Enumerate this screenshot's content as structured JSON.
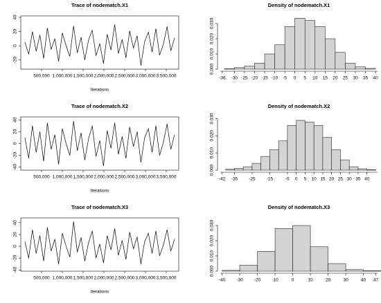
{
  "chart_data": [
    {
      "type": "line",
      "title": "Trace of nodematch.X1",
      "x_label": "Iterations",
      "x": [
        100000,
        190000,
        280000,
        370000,
        460000,
        550000,
        640000,
        730000,
        820000,
        910000,
        1000000,
        1090000,
        1180000,
        1270000,
        1360000,
        1450000,
        1540000,
        1630000,
        1720000,
        1810000,
        1900000,
        1990000,
        2080000,
        2170000,
        2260000,
        2350000,
        2440000,
        2530000,
        2620000,
        2710000,
        2800000,
        2890000,
        2980000,
        3070000,
        3160000,
        3250000,
        3340000,
        3430000,
        3520000,
        3610000,
        3700000
      ],
      "values": [
        5,
        -12,
        20,
        -8,
        15,
        -18,
        25,
        -5,
        10,
        -22,
        18,
        0,
        -15,
        28,
        -10,
        12,
        -20,
        8,
        22,
        -14,
        3,
        -25,
        16,
        -6,
        30,
        -11,
        9,
        -17,
        21,
        -3,
        14,
        -28,
        6,
        19,
        -9,
        24,
        -13,
        2,
        27,
        -7,
        11
      ],
      "color": "#000000",
      "xlim": [
        0,
        3800000
      ],
      "xticks": [
        {
          "value": 500000,
          "label": "500,000"
        },
        {
          "value": 1000000,
          "label": "1,000,000"
        },
        {
          "value": 1500000,
          "label": "1,500,000"
        },
        {
          "value": 2000000,
          "label": "2,000,000"
        },
        {
          "value": 2500000,
          "label": "2,500,000"
        },
        {
          "value": 3000000,
          "label": "3,000,000"
        },
        {
          "value": 3500000,
          "label": "3,500,000"
        }
      ],
      "ylim": [
        -33,
        42
      ],
      "yticks": [
        -20,
        0,
        20,
        40
      ]
    },
    {
      "type": "histogram",
      "title": "Density of nodematch.X1",
      "bins": [
        -35,
        -30,
        -25,
        -20,
        -15,
        -10,
        -5,
        0,
        5,
        10,
        15,
        20,
        25,
        30,
        35,
        40
      ],
      "values": [
        0.0003,
        0.001,
        0.002,
        0.004,
        0.01,
        0.016,
        0.028,
        0.0335,
        0.032,
        0.028,
        0.02,
        0.011,
        0.004,
        0.0015,
        0.0005
      ],
      "color": "#d3d3d3",
      "xlim": [
        -37,
        41
      ],
      "xticks": [
        -36,
        -30,
        -25,
        -20,
        -15,
        -10,
        -5,
        0,
        5,
        10,
        15,
        20,
        25,
        30,
        35,
        40
      ],
      "ylim": [
        0,
        0.035
      ],
      "yticks": [
        {
          "value": 0,
          "label": "0.000"
        },
        {
          "value": 0.01,
          "label": "0.010"
        },
        {
          "value": 0.02,
          "label": "0.020"
        },
        {
          "value": 0.03,
          "label": "0.030"
        }
      ]
    },
    {
      "type": "line",
      "title": "Trace of nodematch.X2",
      "x_label": "Iterations",
      "x": [
        100000,
        190000,
        280000,
        370000,
        460000,
        550000,
        640000,
        730000,
        820000,
        910000,
        1000000,
        1090000,
        1180000,
        1270000,
        1360000,
        1450000,
        1540000,
        1630000,
        1720000,
        1810000,
        1900000,
        1990000,
        2080000,
        2170000,
        2260000,
        2350000,
        2440000,
        2530000,
        2620000,
        2710000,
        2800000,
        2890000,
        2980000,
        3070000,
        3160000,
        3250000,
        3340000,
        3430000,
        3520000,
        3610000,
        3700000
      ],
      "values": [
        10,
        -25,
        30,
        -15,
        20,
        -30,
        35,
        -10,
        15,
        -35,
        25,
        0,
        -20,
        38,
        -12,
        18,
        -28,
        8,
        30,
        -22,
        5,
        -38,
        22,
        -8,
        35,
        -18,
        12,
        -25,
        28,
        -5,
        20,
        -32,
        10,
        25,
        -15,
        30,
        -20,
        2,
        33,
        -10,
        15
      ],
      "color": "#000000",
      "xlim": [
        0,
        3800000
      ],
      "xticks": [
        {
          "value": 500000,
          "label": "500,000"
        },
        {
          "value": 1000000,
          "label": "1,000,000"
        },
        {
          "value": 1500000,
          "label": "1,500,000"
        },
        {
          "value": 2000000,
          "label": "2,000,000"
        },
        {
          "value": 2500000,
          "label": "2,500,000"
        },
        {
          "value": 3000000,
          "label": "3,000,000"
        },
        {
          "value": 3500000,
          "label": "3,500,000"
        }
      ],
      "ylim": [
        -45,
        45
      ],
      "yticks": [
        -40,
        -20,
        0,
        20,
        40
      ]
    },
    {
      "type": "histogram",
      "title": "Density of nodematch.X2",
      "bins": [
        -40,
        -35,
        -30,
        -25,
        -20,
        -15,
        -10,
        -5,
        0,
        5,
        10,
        15,
        20,
        25,
        30,
        35,
        40,
        45
      ],
      "values": [
        0.0005,
        0.001,
        0.002,
        0.004,
        0.008,
        0.012,
        0.017,
        0.026,
        0.029,
        0.028,
        0.026,
        0.019,
        0.012,
        0.006,
        0.002,
        0.0008,
        0.0003
      ],
      "color": "#d3d3d3",
      "xlim": [
        -43,
        46
      ],
      "xticks": [
        -42,
        -35,
        -25,
        -15,
        -5,
        0,
        5,
        10,
        15,
        20,
        25,
        30,
        35,
        40
      ],
      "ylim": [
        0,
        0.031
      ],
      "yticks": [
        {
          "value": 0,
          "label": "0.000"
        },
        {
          "value": 0.01,
          "label": "0.010"
        },
        {
          "value": 0.02,
          "label": "0.020"
        },
        {
          "value": 0.03,
          "label": "0.030"
        }
      ]
    },
    {
      "type": "line",
      "title": "Trace of nodematch.X3",
      "x_label": "Iterations",
      "x": [
        100000,
        190000,
        280000,
        370000,
        460000,
        550000,
        640000,
        730000,
        820000,
        910000,
        1000000,
        1090000,
        1180000,
        1270000,
        1360000,
        1450000,
        1540000,
        1630000,
        1720000,
        1810000,
        1900000,
        1990000,
        2080000,
        2170000,
        2260000,
        2350000,
        2440000,
        2530000,
        2620000,
        2710000,
        2800000,
        2890000,
        2980000,
        3070000,
        3160000,
        3250000,
        3340000,
        3430000,
        3520000,
        3610000,
        3700000
      ],
      "values": [
        8,
        -20,
        28,
        -12,
        18,
        -25,
        32,
        -8,
        12,
        -30,
        22,
        0,
        -18,
        42,
        -10,
        15,
        -25,
        6,
        26,
        -20,
        4,
        -28,
        18,
        -6,
        30,
        -15,
        10,
        -22,
        24,
        -4,
        16,
        -30,
        8,
        22,
        -12,
        26,
        -16,
        2,
        28,
        -8,
        12
      ],
      "color": "#000000",
      "xlim": [
        0,
        3800000
      ],
      "xticks": [
        {
          "value": 500000,
          "label": "500,000"
        },
        {
          "value": 1000000,
          "label": "1,000,000"
        },
        {
          "value": 1500000,
          "label": "1,500,000"
        },
        {
          "value": 2000000,
          "label": "2,000,000"
        },
        {
          "value": 2500000,
          "label": "2,500,000"
        },
        {
          "value": 3000000,
          "label": "3,000,000"
        },
        {
          "value": 3500000,
          "label": "3,500,000"
        }
      ],
      "ylim": [
        -42,
        48
      ],
      "yticks": [
        -40,
        -20,
        0,
        20,
        40
      ]
    },
    {
      "type": "histogram",
      "title": "Density of nodematch.X3",
      "bins": [
        -40,
        -30,
        -20,
        -10,
        0,
        10,
        20,
        30,
        40,
        50
      ],
      "values": [
        0.0005,
        0.004,
        0.013,
        0.028,
        0.03,
        0.016,
        0.005,
        0.001,
        0.0003
      ],
      "color": "#d3d3d3",
      "xlim": [
        -41,
        48
      ],
      "xticks": [
        -40,
        -30,
        -20,
        -10,
        0,
        10,
        20,
        30,
        40,
        47
      ],
      "ylim": [
        0,
        0.035
      ],
      "yticks": [
        {
          "value": 0,
          "label": "0.000"
        },
        {
          "value": 0.01,
          "label": "0.010"
        },
        {
          "value": 0.02,
          "label": "0.020"
        },
        {
          "value": 0.03,
          "label": "0.030"
        }
      ]
    }
  ]
}
